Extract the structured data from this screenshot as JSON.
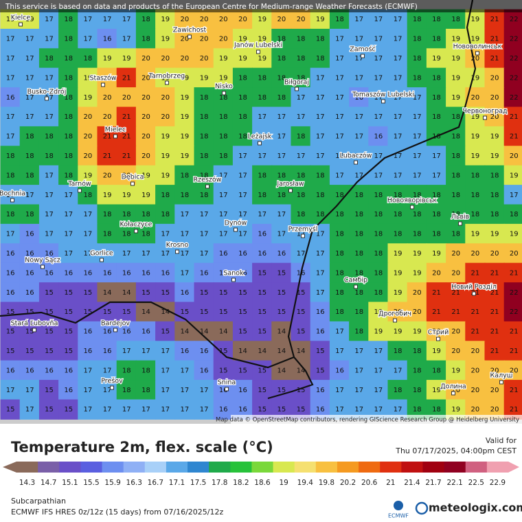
{
  "header": {
    "disclaimer": "This service is based on data and products of the European Centre for Medium-range Weather Forecasts (ECMWF)"
  },
  "map": {
    "values": [
      [
        19,
        19,
        17,
        18,
        17,
        17,
        17,
        18,
        19,
        20,
        20,
        20,
        20,
        19,
        20,
        20,
        19,
        18,
        17,
        17,
        17,
        18,
        18,
        18,
        19,
        21,
        22
      ],
      [
        17,
        17,
        17,
        18,
        17,
        16,
        17,
        18,
        19,
        20,
        20,
        20,
        19,
        19,
        18,
        18,
        18,
        17,
        17,
        17,
        17,
        18,
        18,
        19,
        19,
        21,
        22
      ],
      [
        17,
        17,
        18,
        18,
        18,
        19,
        19,
        20,
        20,
        20,
        20,
        19,
        19,
        19,
        18,
        18,
        18,
        17,
        17,
        17,
        17,
        18,
        19,
        19,
        20,
        21,
        22
      ],
      [
        17,
        17,
        17,
        18,
        19,
        20,
        21,
        20,
        19,
        19,
        19,
        19,
        18,
        18,
        18,
        18,
        17,
        17,
        17,
        17,
        17,
        18,
        18,
        19,
        19,
        20,
        22
      ],
      [
        16,
        17,
        17,
        18,
        19,
        20,
        20,
        20,
        20,
        19,
        18,
        18,
        18,
        18,
        18,
        17,
        17,
        17,
        16,
        17,
        17,
        17,
        18,
        19,
        20,
        20,
        22
      ],
      [
        17,
        17,
        17,
        18,
        20,
        20,
        21,
        20,
        20,
        19,
        18,
        18,
        18,
        17,
        17,
        17,
        17,
        17,
        17,
        17,
        17,
        17,
        18,
        18,
        19,
        20,
        21
      ],
      [
        17,
        18,
        18,
        18,
        20,
        21,
        21,
        20,
        19,
        19,
        18,
        18,
        18,
        17,
        17,
        18,
        17,
        17,
        17,
        16,
        17,
        17,
        18,
        18,
        19,
        19,
        21
      ],
      [
        18,
        18,
        18,
        18,
        20,
        21,
        21,
        20,
        19,
        19,
        18,
        18,
        17,
        17,
        17,
        17,
        17,
        17,
        17,
        17,
        17,
        17,
        17,
        18,
        19,
        19,
        20
      ],
      [
        18,
        18,
        17,
        18,
        19,
        20,
        20,
        19,
        19,
        18,
        18,
        17,
        17,
        18,
        18,
        18,
        18,
        17,
        17,
        17,
        17,
        17,
        17,
        18,
        18,
        18,
        19
      ],
      [
        17,
        17,
        17,
        17,
        18,
        19,
        19,
        19,
        18,
        18,
        18,
        17,
        17,
        18,
        18,
        18,
        18,
        18,
        18,
        18,
        18,
        18,
        18,
        18,
        18,
        18,
        17
      ],
      [
        18,
        18,
        17,
        17,
        17,
        18,
        18,
        18,
        18,
        17,
        17,
        17,
        17,
        17,
        17,
        18,
        18,
        18,
        18,
        18,
        18,
        18,
        18,
        18,
        18,
        18,
        18
      ],
      [
        17,
        16,
        17,
        17,
        17,
        18,
        18,
        18,
        17,
        17,
        17,
        17,
        17,
        16,
        17,
        17,
        17,
        18,
        18,
        18,
        18,
        18,
        18,
        18,
        19,
        19,
        19
      ],
      [
        16,
        16,
        16,
        17,
        17,
        17,
        17,
        17,
        17,
        17,
        17,
        16,
        16,
        16,
        16,
        17,
        17,
        18,
        18,
        18,
        19,
        19,
        19,
        20,
        20,
        20,
        20
      ],
      [
        16,
        16,
        16,
        16,
        16,
        16,
        16,
        16,
        16,
        17,
        16,
        16,
        16,
        15,
        15,
        16,
        17,
        18,
        18,
        18,
        19,
        19,
        20,
        20,
        21,
        21,
        21
      ],
      [
        16,
        16,
        15,
        15,
        15,
        14,
        14,
        15,
        15,
        16,
        15,
        15,
        15,
        15,
        15,
        15,
        17,
        18,
        18,
        18,
        19,
        20,
        21,
        21,
        21,
        21,
        22
      ],
      [
        15,
        15,
        15,
        15,
        15,
        15,
        15,
        14,
        14,
        15,
        15,
        15,
        15,
        15,
        15,
        15,
        16,
        18,
        18,
        19,
        20,
        20,
        21,
        21,
        21,
        21,
        22
      ],
      [
        15,
        15,
        15,
        15,
        16,
        16,
        16,
        16,
        15,
        14,
        14,
        14,
        15,
        15,
        14,
        15,
        16,
        17,
        18,
        19,
        19,
        19,
        20,
        20,
        21,
        21,
        21
      ],
      [
        15,
        15,
        15,
        15,
        16,
        16,
        17,
        17,
        17,
        16,
        16,
        15,
        14,
        14,
        14,
        14,
        15,
        17,
        17,
        17,
        18,
        18,
        19,
        20,
        20,
        21,
        21
      ],
      [
        16,
        16,
        16,
        16,
        17,
        17,
        18,
        18,
        17,
        17,
        16,
        15,
        15,
        15,
        14,
        14,
        15,
        16,
        17,
        17,
        17,
        18,
        18,
        19,
        20,
        20,
        20
      ],
      [
        17,
        17,
        15,
        16,
        17,
        17,
        18,
        18,
        17,
        17,
        17,
        16,
        16,
        15,
        15,
        15,
        16,
        17,
        17,
        17,
        18,
        18,
        19,
        20,
        20,
        20,
        21
      ],
      [
        15,
        17,
        15,
        15,
        17,
        17,
        17,
        17,
        17,
        17,
        17,
        16,
        16,
        15,
        15,
        15,
        16,
        17,
        17,
        17,
        17,
        18,
        18,
        19,
        20,
        20,
        21
      ]
    ],
    "cities": [
      "Kielce",
      "Zawichost",
      "Janów Lubelski",
      "Zamość",
      "Нововолинськ",
      "Staszów",
      "Tarnobrzeg",
      "Nisko",
      "Biłgoraj",
      "Busko-Zdrój",
      "Tomaszów Lubelski",
      "Червоноград",
      "Mielec",
      "Leżajsk",
      "Lubaczów",
      "Dębica",
      "Rzeszów",
      "Jarosław",
      "Tarnów",
      "Bochnia",
      "Новояворівськ",
      "Львів",
      "Kołaczyce",
      "Dynów",
      "Przemyśl",
      "Gorlice",
      "Krosno",
      "Nowy Sącz",
      "Sanok",
      "Самбір",
      "Новий Розділ",
      "Stará Ľubovňa",
      "Bardejov",
      "Дрогобич",
      "Стрий",
      "Prešov",
      "Snina",
      "Калуш",
      "Долина"
    ],
    "attribution": "Map data © OpenStreetMap contributors, rendering GIScience Research Group @ Heidelberg University"
  },
  "legend": {
    "title": "Temperature 2m, flex. scale (°C)",
    "ticks": [
      14.3,
      14.7,
      15.1,
      15.5,
      15.9,
      16.3,
      16.7,
      17.1,
      17.5,
      17.8,
      18.2,
      18.6,
      19,
      19.4,
      19.8,
      20.2,
      20.6,
      21,
      21.4,
      21.7,
      22.1,
      22.5,
      22.9
    ],
    "colors": [
      "#8a6a5a",
      "#7a5fa8",
      "#6a4fc8",
      "#5a5fe0",
      "#6d8ff0",
      "#8fb0f5",
      "#a8d0f8",
      "#5aa8e8",
      "#2f86d0",
      "#1faa4a",
      "#27c23a",
      "#7ad83a",
      "#d8e850",
      "#f5e070",
      "#f8c040",
      "#f59a20",
      "#ef6a10",
      "#e03010",
      "#c01010",
      "#a00010",
      "#900020",
      "#d06080",
      "#f0a0b0"
    ]
  },
  "footer": {
    "valid_label": "Valid for",
    "valid_time": "Thu 07/17/2025, 04:00pm CEST",
    "region": "Subcarpathian",
    "model": "ECMWF IFS HRES 0z/12z (15 days) from 07/16/2025/12z",
    "ecmwf": "ECMWF",
    "brand": "meteologix.com"
  }
}
